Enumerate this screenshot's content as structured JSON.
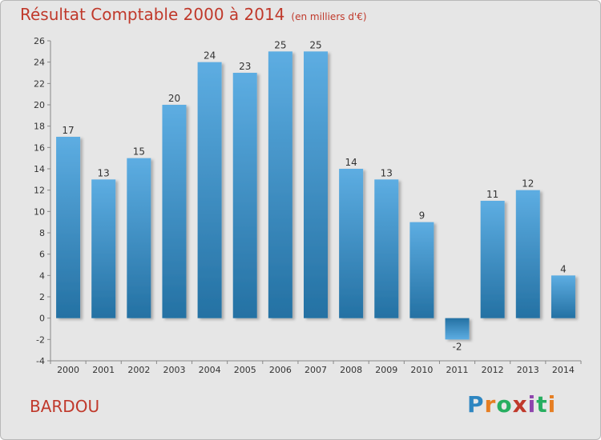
{
  "title": "Résultat Comptable 2000 à 2014",
  "unit": "(en milliers d'€)",
  "commune": "BARDOU",
  "logo": {
    "text": "Proxiti",
    "colors": [
      "#2e86c1",
      "#e67e22",
      "#27ae60",
      "#c0392b",
      "#8e44ad",
      "#27ae60",
      "#e67e22"
    ]
  },
  "colors": {
    "title": "#c0392b",
    "bar_light": "#5dade2",
    "bar_dark": "#2471a3",
    "background": "#e6e6e6"
  },
  "chart_data": {
    "type": "bar",
    "categories": [
      "2000",
      "2001",
      "2002",
      "2003",
      "2004",
      "2005",
      "2006",
      "2007",
      "2008",
      "2009",
      "2010",
      "2011",
      "2012",
      "2013",
      "2014"
    ],
    "values": [
      17,
      13,
      15,
      20,
      24,
      23,
      25,
      25,
      14,
      13,
      9,
      -2,
      11,
      12,
      4
    ],
    "ylim": [
      -4,
      26
    ],
    "yticks": [
      -4,
      -2,
      0,
      2,
      4,
      6,
      8,
      10,
      12,
      14,
      16,
      18,
      20,
      22,
      24,
      26
    ],
    "data_labels": true,
    "grid": false,
    "legend": "none"
  }
}
